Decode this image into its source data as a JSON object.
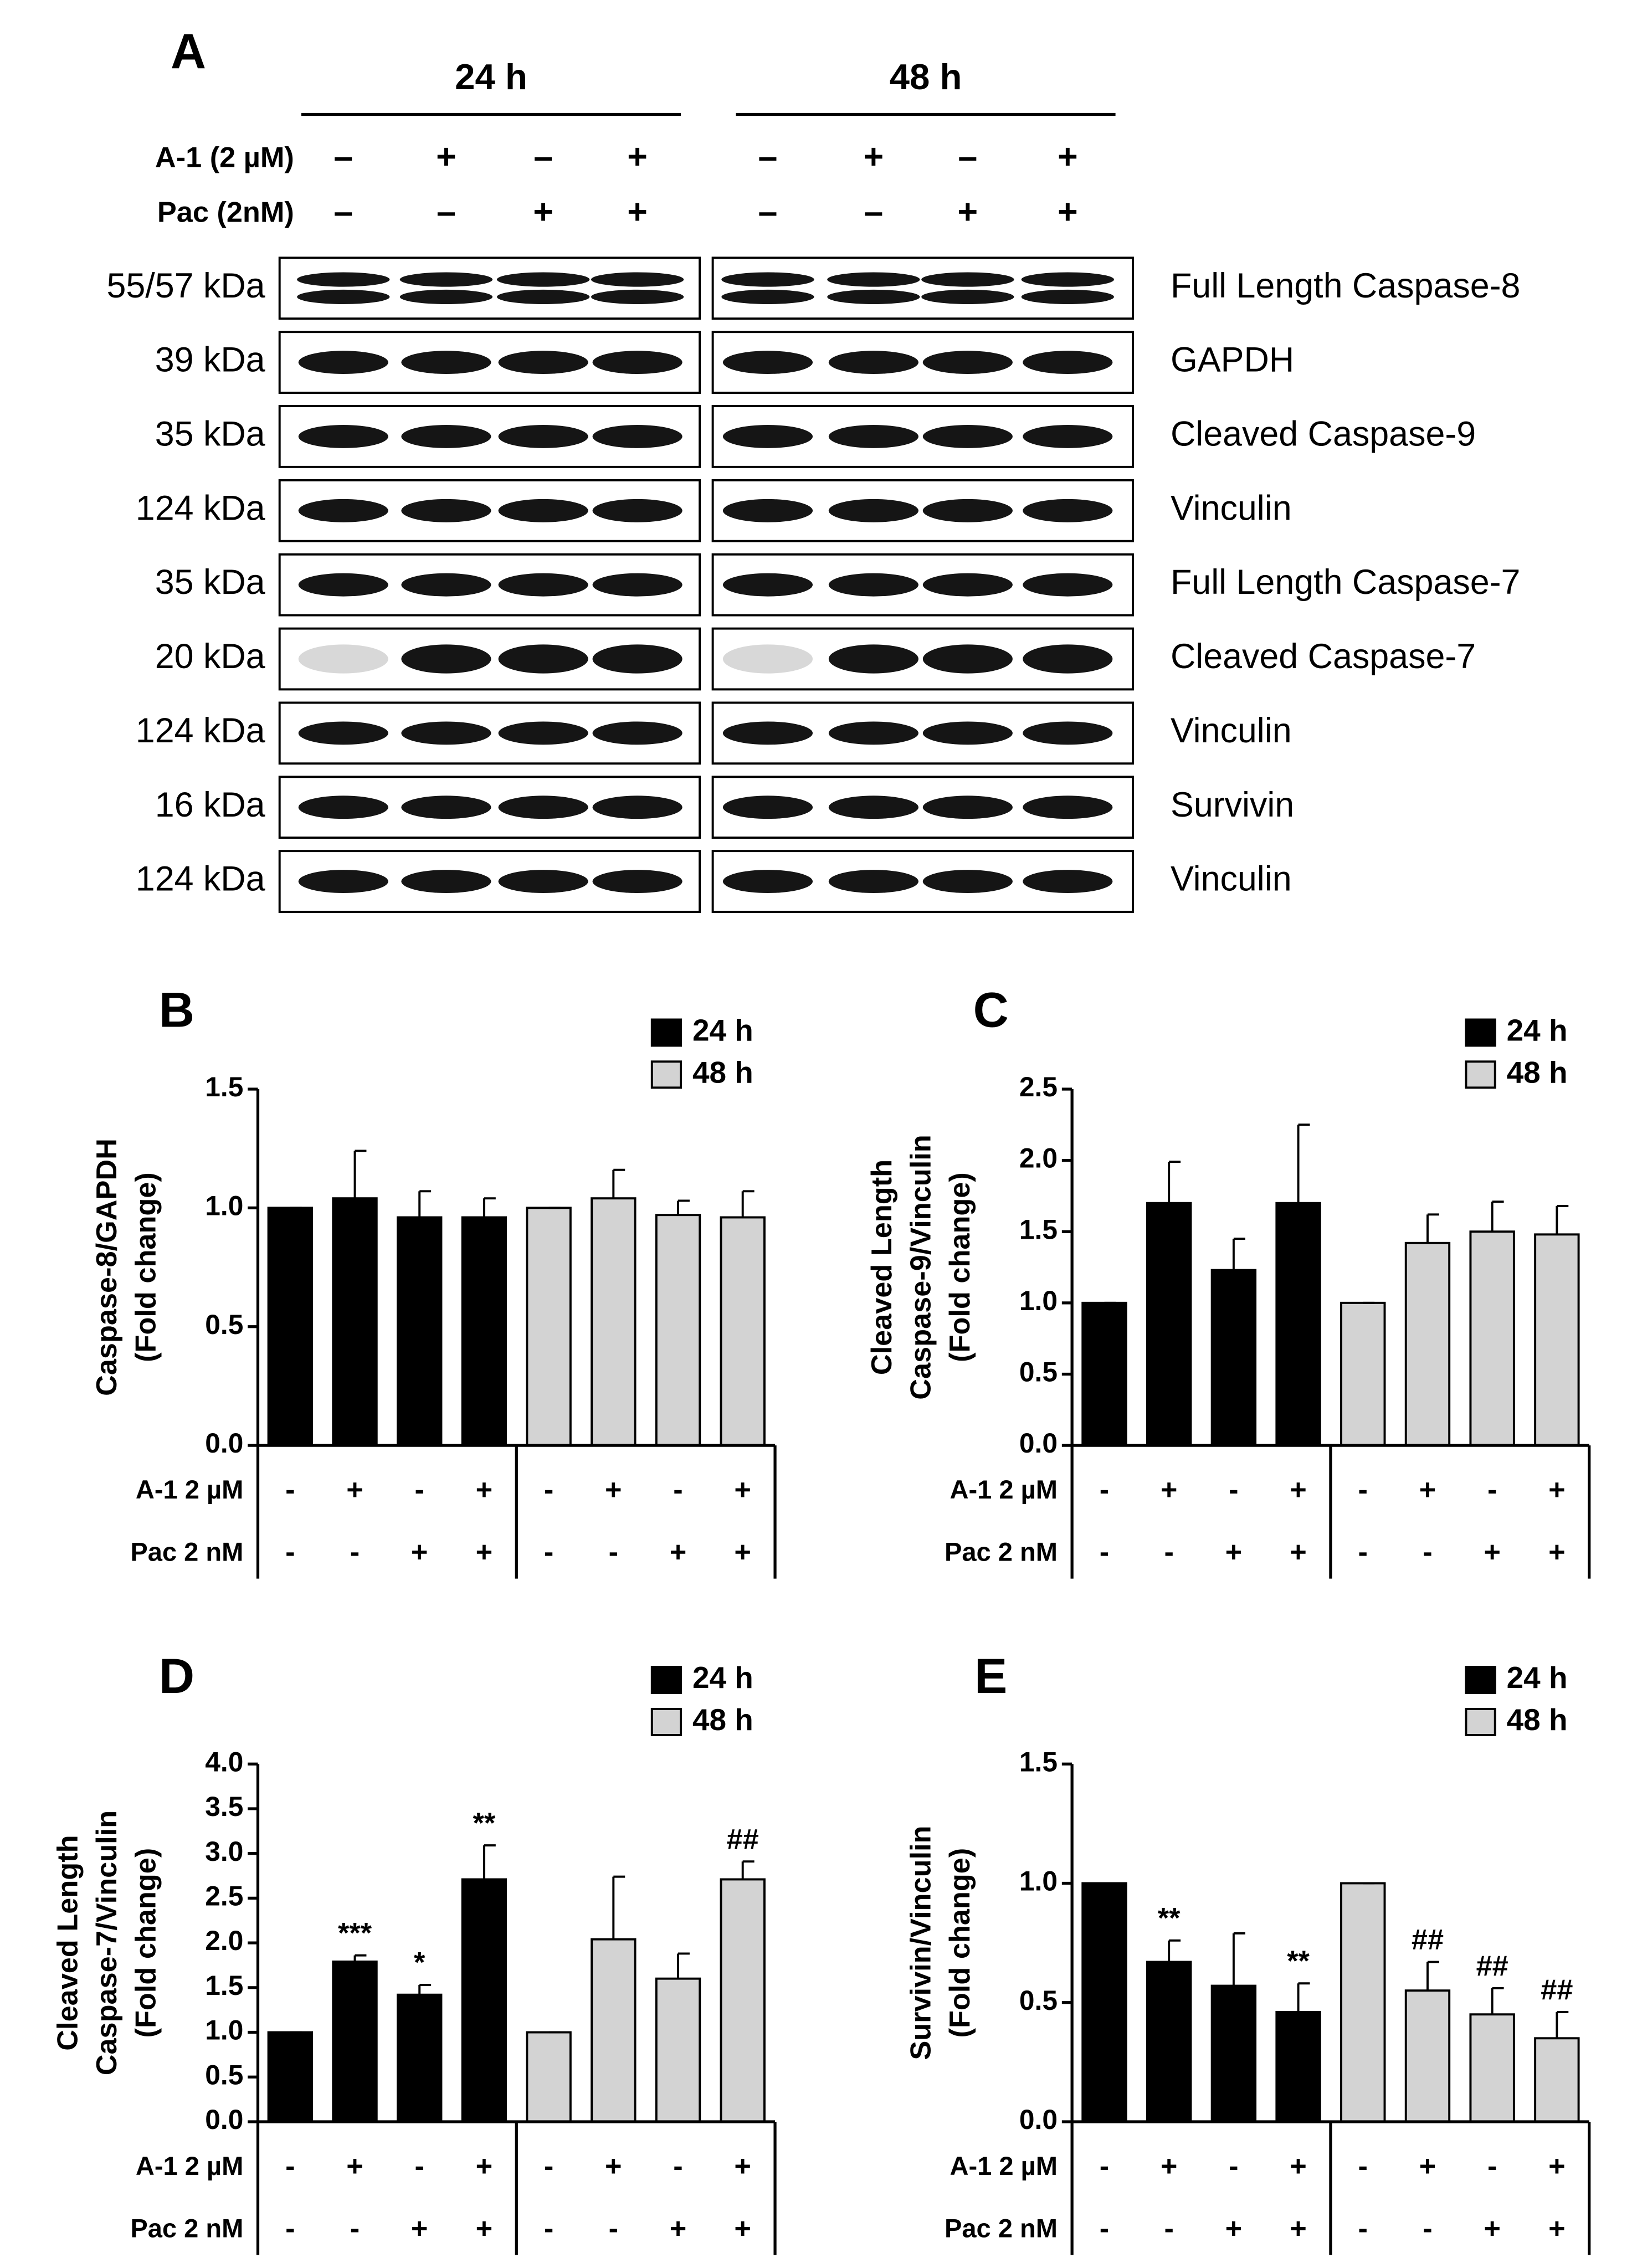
{
  "blot": {
    "panel": "A",
    "times": [
      "24 h",
      "48 h"
    ],
    "treatments": [
      {
        "name": "A-1 (2 µM)",
        "signs": [
          "–",
          "+",
          "–",
          "+",
          "–",
          "+",
          "–",
          "+"
        ]
      },
      {
        "name": "Pac (2nM)",
        "signs": [
          "–",
          "–",
          "+",
          "+",
          "–",
          "–",
          "+",
          "+"
        ]
      }
    ],
    "rows": [
      {
        "size": "55/57 kDa",
        "protein": "Full Length Caspase-8"
      },
      {
        "size": "39 kDa",
        "protein": "GAPDH"
      },
      {
        "size": "35 kDa",
        "protein": "Cleaved Caspase-9"
      },
      {
        "size": "124 kDa",
        "protein": "Vinculin"
      },
      {
        "size": "35 kDa",
        "protein": "Full Length Caspase-7"
      },
      {
        "size": "20 kDa",
        "protein": "Cleaved Caspase-7"
      },
      {
        "size": "124 kDa",
        "protein": "Vinculin"
      },
      {
        "size": "16 kDa",
        "protein": "Survivin"
      },
      {
        "size": "124 kDa",
        "protein": "Vinculin"
      }
    ]
  },
  "chart_data": [
    {
      "type": "bar",
      "panel": "B",
      "ylabel": [
        "Caspase-8/GAPDH",
        "(Fold change)"
      ],
      "treatments": [
        {
          "name": "A-1 2 µM",
          "signs": [
            "-",
            "+",
            "-",
            "+",
            "-",
            "+",
            "-",
            "+"
          ]
        },
        {
          "name": "Pac 2 nM",
          "signs": [
            "-",
            "-",
            "+",
            "+",
            "-",
            "-",
            "+",
            "+"
          ]
        }
      ],
      "series": [
        {
          "name": "24 h",
          "color": "#000000",
          "values": [
            1.0,
            1.04,
            0.96,
            0.96
          ],
          "errors": [
            0,
            0.2,
            0.11,
            0.08
          ],
          "annotations": [
            null,
            null,
            null,
            null
          ]
        },
        {
          "name": "48 h",
          "color": "#d3d3d3",
          "values": [
            1.0,
            1.04,
            0.97,
            0.96
          ],
          "errors": [
            0,
            0.12,
            0.06,
            0.11
          ],
          "annotations": [
            null,
            null,
            null,
            null
          ]
        }
      ],
      "ylim": [
        0,
        1.5
      ],
      "yticks": [
        {
          "value": 0,
          "label": "0.0"
        },
        {
          "value": 0.5,
          "label": "0.5"
        },
        {
          "value": 1,
          "label": "1.0"
        },
        {
          "value": 1.5,
          "label": "1.5"
        }
      ]
    },
    {
      "type": "bar",
      "panel": "C",
      "ylabel": [
        "Cleaved Length",
        "Caspase-9/Vinculin",
        "(Fold change)"
      ],
      "treatments": [
        {
          "name": "A-1 2 µM",
          "signs": [
            "-",
            "+",
            "-",
            "+",
            "-",
            "+",
            "-",
            "+"
          ]
        },
        {
          "name": "Pac 2 nM",
          "signs": [
            "-",
            "-",
            "+",
            "+",
            "-",
            "-",
            "+",
            "+"
          ]
        }
      ],
      "series": [
        {
          "name": "24 h",
          "color": "#000000",
          "values": [
            1.0,
            1.7,
            1.23,
            1.7
          ],
          "errors": [
            0,
            0.29,
            0.22,
            0.55
          ],
          "annotations": [
            null,
            null,
            null,
            null
          ]
        },
        {
          "name": "48 h",
          "color": "#d3d3d3",
          "values": [
            1.0,
            1.42,
            1.5,
            1.48
          ],
          "errors": [
            0,
            0.2,
            0.21,
            0.2
          ],
          "annotations": [
            null,
            null,
            null,
            null
          ]
        }
      ],
      "ylim": [
        0,
        2.5
      ],
      "yticks": [
        {
          "value": 0,
          "label": "0.0"
        },
        {
          "value": 0.5,
          "label": "0.5"
        },
        {
          "value": 1,
          "label": "1.0"
        },
        {
          "value": 1.5,
          "label": "1.5"
        },
        {
          "value": 2,
          "label": "2.0"
        },
        {
          "value": 2.5,
          "label": "2.5"
        }
      ]
    },
    {
      "type": "bar",
      "panel": "D",
      "ylabel": [
        "Cleaved Length",
        "Caspase-7/Vinculin",
        "(Fold change)"
      ],
      "treatments": [
        {
          "name": "A-1 2 µM",
          "signs": [
            "-",
            "+",
            "-",
            "+",
            "-",
            "+",
            "-",
            "+"
          ]
        },
        {
          "name": "Pac 2 nM",
          "signs": [
            "-",
            "-",
            "+",
            "+",
            "-",
            "-",
            "+",
            "+"
          ]
        }
      ],
      "series": [
        {
          "name": "24 h",
          "color": "#000000",
          "values": [
            1.0,
            1.79,
            1.42,
            2.71
          ],
          "errors": [
            0,
            0.07,
            0.11,
            0.38
          ],
          "annotations": [
            null,
            "***",
            "*",
            "**"
          ]
        },
        {
          "name": "48 h",
          "color": "#d3d3d3",
          "values": [
            1.0,
            2.04,
            1.6,
            2.71
          ],
          "errors": [
            0,
            0.7,
            0.28,
            0.2
          ],
          "annotations": [
            null,
            null,
            null,
            "##"
          ]
        }
      ],
      "ylim": [
        0,
        4
      ],
      "yticks": [
        {
          "value": 0,
          "label": "0.0"
        },
        {
          "value": 0.5,
          "label": "0.5"
        },
        {
          "value": 1,
          "label": "1.0"
        },
        {
          "value": 1.5,
          "label": "1.5"
        },
        {
          "value": 2,
          "label": "2.0"
        },
        {
          "value": 2.5,
          "label": "2.5"
        },
        {
          "value": 3,
          "label": "3.0"
        },
        {
          "value": 3.5,
          "label": "3.5"
        },
        {
          "value": 4,
          "label": "4.0"
        }
      ]
    },
    {
      "type": "bar",
      "panel": "E",
      "ylabel": [
        "Survivin/Vinculin",
        "(Fold change)"
      ],
      "treatments": [
        {
          "name": "A-1 2 µM",
          "signs": [
            "-",
            "+",
            "-",
            "+",
            "-",
            "+",
            "-",
            "+"
          ]
        },
        {
          "name": "Pac 2 nM",
          "signs": [
            "-",
            "-",
            "+",
            "+",
            "-",
            "-",
            "+",
            "+"
          ]
        }
      ],
      "series": [
        {
          "name": "24 h",
          "color": "#000000",
          "values": [
            1.0,
            0.67,
            0.57,
            0.46
          ],
          "errors": [
            0,
            0.09,
            0.22,
            0.12
          ],
          "annotations": [
            null,
            "**",
            null,
            "**"
          ]
        },
        {
          "name": "48 h",
          "color": "#d3d3d3",
          "values": [
            1.0,
            0.55,
            0.45,
            0.35
          ],
          "errors": [
            0,
            0.12,
            0.11,
            0.11
          ],
          "annotations": [
            null,
            "##",
            "##",
            "##"
          ]
        }
      ],
      "ylim": [
        0,
        1.5
      ],
      "yticks": [
        {
          "value": 0,
          "label": "0.0"
        },
        {
          "value": 0.5,
          "label": "0.5"
        },
        {
          "value": 1,
          "label": "1.0"
        },
        {
          "value": 1.5,
          "label": "1.5"
        }
      ]
    }
  ]
}
